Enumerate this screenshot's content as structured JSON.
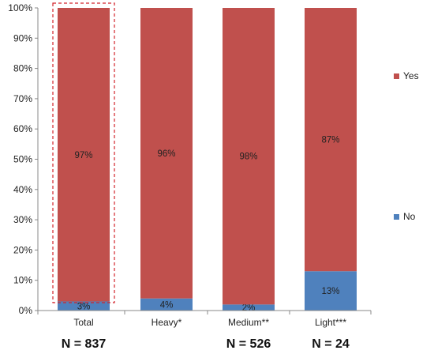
{
  "chart_data": {
    "type": "bar",
    "stacked": true,
    "categories": [
      "Total",
      "Heavy*",
      "Medium**",
      "Light***"
    ],
    "series": [
      {
        "name": "No",
        "color": "#4f81bd",
        "values": [
          3,
          4,
          2,
          13
        ],
        "labels": [
          "3%",
          "4%",
          "2%",
          "13%"
        ]
      },
      {
        "name": "Yes",
        "color": "#c0504d",
        "values": [
          97,
          96,
          98,
          87
        ],
        "labels": [
          "97%",
          "96%",
          "98%",
          "87%"
        ]
      }
    ],
    "ylim": [
      0,
      100
    ],
    "yticks": [
      "0%",
      "10%",
      "20%",
      "30%",
      "40%",
      "50%",
      "60%",
      "70%",
      "80%",
      "90%",
      "100%"
    ],
    "legend": {
      "position": "right",
      "entries": [
        "Yes",
        "No"
      ]
    },
    "sample_sizes": [
      "N = 837",
      "",
      "N = 526",
      "N = 24"
    ],
    "highlight_category": "Total",
    "grid": false
  }
}
